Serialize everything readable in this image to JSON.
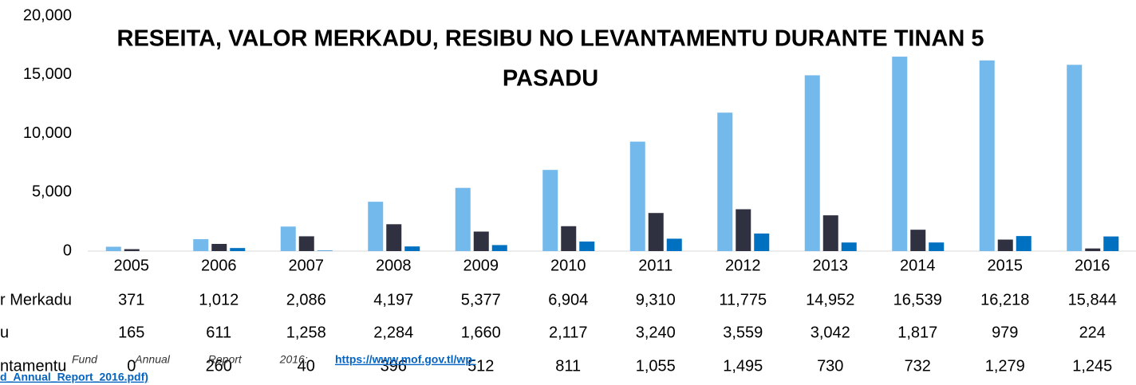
{
  "chart_data": {
    "type": "bar",
    "title_lines": [
      "RESEITA, VALOR MERKADU, RESIBU NO LEVANTAMENTU DURANTE TINAN 5",
      "PASADU"
    ],
    "categories": [
      "2005",
      "2006",
      "2007",
      "2008",
      "2009",
      "2010",
      "2011",
      "2012",
      "2013",
      "2014",
      "2015",
      "2016"
    ],
    "series": [
      {
        "name": "r Merkadu",
        "color": "#74b9ec",
        "values": [
          371,
          1012,
          2086,
          4197,
          5377,
          6904,
          9310,
          11775,
          14952,
          16539,
          16218,
          15844
        ],
        "value_labels": [
          "371",
          "1,012",
          "2,086",
          "4,197",
          "5,377",
          "6,904",
          "9,310",
          "11,775",
          "14,952",
          "16,539",
          "16,218",
          "15,844"
        ]
      },
      {
        "name": "u",
        "color": "#2f3140",
        "values": [
          165,
          611,
          1258,
          2284,
          1660,
          2117,
          3240,
          3559,
          3042,
          1817,
          979,
          224
        ],
        "value_labels": [
          "165",
          "611",
          "1,258",
          "2,284",
          "1,660",
          "2,117",
          "3,240",
          "3,559",
          "3,042",
          "1,817",
          "979",
          "224"
        ]
      },
      {
        "name": "ntamentu",
        "color": "#0070c0",
        "values": [
          0,
          260,
          40,
          396,
          512,
          811,
          1055,
          1495,
          730,
          732,
          1279,
          1245
        ],
        "value_labels": [
          "0",
          "260",
          "40",
          "396",
          "512",
          "811",
          "1,055",
          "1,495",
          "730",
          "732",
          "1,279",
          "1,245"
        ]
      }
    ],
    "ylim": [
      0,
      20000
    ],
    "yticks": [
      0,
      {
        "value": 5000,
        "label": "5,000"
      },
      {
        "value": 10000,
        "label": "10,000"
      },
      {
        "value": 15000,
        "label": "15,000"
      },
      {
        "value": 20000,
        "label": "20,000"
      }
    ],
    "grid": false,
    "source": {
      "text": "Fund Annual Report 2016:",
      "link": "https://www.mof.gov.tl/wp-",
      "link_cont": "d_Annual_Report_2016.pdf)"
    }
  }
}
